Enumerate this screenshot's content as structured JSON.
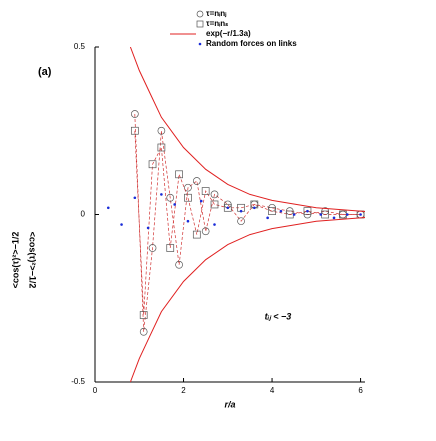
{
  "chart_data": {
    "type": "scatter",
    "panel_label": "(a)",
    "xlabel": "r/a",
    "ylabel": "<cos(τ)²>−1/2",
    "side_label": "<cos(τ)²>−1/2",
    "annotation": "tᵢⱼ < −3",
    "xlim": [
      0,
      6.1
    ],
    "ylim": [
      -0.5,
      0.5
    ],
    "xticks": [
      0,
      2,
      4,
      6
    ],
    "yticks": [
      -0.5,
      0,
      0.5
    ],
    "series": [
      {
        "name": "τ=nᵢnⱼ",
        "marker": "circle",
        "color": "#555555",
        "line_color": "#d03030",
        "x": [
          0.9,
          1.1,
          1.3,
          1.5,
          1.7,
          1.9,
          2.1,
          2.3,
          2.5,
          2.7,
          3.0,
          3.3,
          3.6,
          4.0,
          4.4,
          4.8,
          5.2,
          5.6,
          6.0
        ],
        "values": [
          0.3,
          -0.35,
          -0.1,
          0.25,
          0.05,
          -0.15,
          0.08,
          0.1,
          -0.05,
          0.06,
          0.03,
          -0.02,
          0.03,
          0.02,
          0.01,
          0.0,
          0.01,
          0.0,
          0.0
        ]
      },
      {
        "name": "τ=nᵢnₛ",
        "marker": "square",
        "color": "#555555",
        "line_color": "#d03030",
        "x": [
          0.9,
          1.1,
          1.3,
          1.5,
          1.7,
          1.9,
          2.1,
          2.3,
          2.5,
          2.7,
          3.0,
          3.3,
          3.6,
          4.0,
          4.4,
          4.8,
          5.2,
          5.6,
          6.0
        ],
        "values": [
          0.25,
          -0.3,
          0.15,
          0.2,
          -0.1,
          0.12,
          0.05,
          -0.06,
          0.07,
          0.03,
          0.02,
          0.02,
          0.03,
          0.01,
          0.0,
          0.01,
          0.0,
          0.0,
          0.0
        ]
      },
      {
        "name": "exp(−r/1.3a)",
        "marker": "line",
        "color": "#e02020",
        "x": [
          0.8,
          1,
          1.25,
          1.5,
          2,
          2.5,
          3,
          3.5,
          4,
          5,
          6.1
        ],
        "values": [
          0.5,
          0.43,
          0.36,
          0.29,
          0.2,
          0.135,
          0.09,
          0.06,
          0.042,
          0.02,
          0.009
        ],
        "mirror_values": [
          -0.5,
          -0.43,
          -0.36,
          -0.29,
          -0.2,
          -0.135,
          -0.09,
          -0.06,
          -0.042,
          -0.02,
          -0.009
        ]
      },
      {
        "name": "Random forces on links",
        "marker": "dot",
        "color": "#1a2cd8",
        "x": [
          0.3,
          0.6,
          0.9,
          1.2,
          1.5,
          1.8,
          2.1,
          2.4,
          2.7,
          3.0,
          3.3,
          3.6,
          3.9,
          4.2,
          4.5,
          4.8,
          5.1,
          5.4,
          5.7,
          6.0
        ],
        "values": [
          0.02,
          -0.03,
          0.05,
          -0.04,
          0.06,
          0.03,
          -0.02,
          0.04,
          -0.03,
          0.02,
          0.01,
          0.02,
          -0.01,
          0.01,
          0.0,
          0.01,
          0.0,
          -0.01,
          0.0,
          0.0
        ]
      }
    ]
  }
}
